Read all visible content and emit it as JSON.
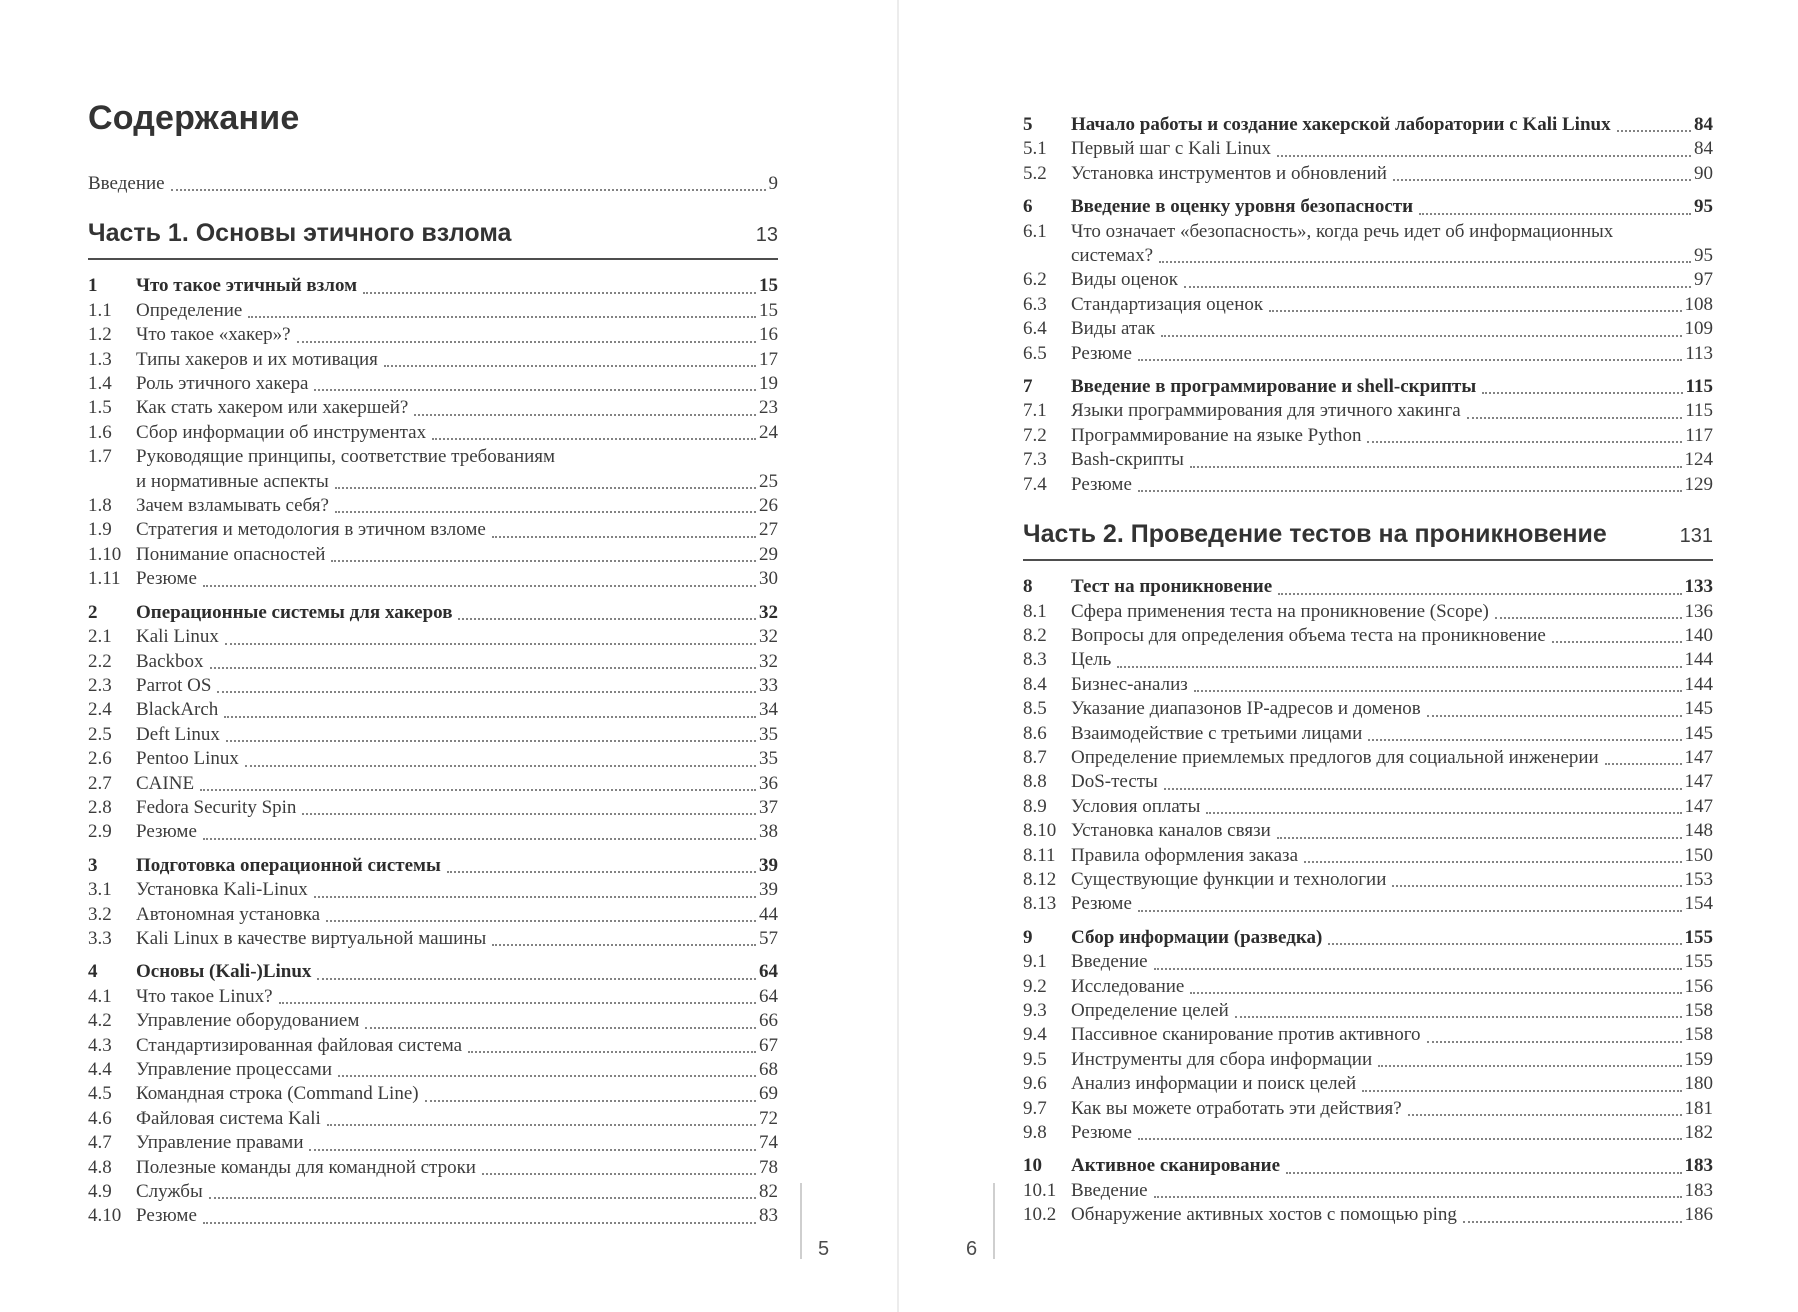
{
  "document_title": "Содержание",
  "colors": {
    "paper": "#ffffff",
    "heading_text": "#333333",
    "body_text": "#3c3c3c",
    "dot_leader": "#838383",
    "part_rule": "#4e4e4e",
    "page_divider": "#ececec",
    "folio_rule": "#cfcfcf"
  },
  "pages": [
    {
      "folio": "5",
      "title": "Содержание",
      "blocks": [
        {
          "kind": "group",
          "rows": [
            {
              "flush": true,
              "label": "Введение",
              "page": "9"
            }
          ]
        },
        {
          "kind": "part",
          "label": "Часть 1. Основы этичного взлома",
          "page": "13"
        },
        {
          "kind": "group",
          "rows": [
            {
              "num": "1",
              "label": "Что такое этичный взлом",
              "page": "15",
              "bold": true
            },
            {
              "num": "1.1",
              "label": "Определение",
              "page": "15"
            },
            {
              "num": "1.2",
              "label": "Что такое «хакер»?",
              "page": "16"
            },
            {
              "num": "1.3",
              "label": "Типы хакеров и их мотивация",
              "page": "17"
            },
            {
              "num": "1.4",
              "label": "Роль этичного хакера",
              "page": "19"
            },
            {
              "num": "1.5",
              "label": "Как стать хакером или хакершей?",
              "page": "23"
            },
            {
              "num": "1.6",
              "label": "Сбор информации об инструментах",
              "page": "24"
            },
            {
              "num": "1.7",
              "label": "Руководящие принципы, соответствие требованиям",
              "label2": "и нормативные аспекты",
              "page": "25"
            },
            {
              "num": "1.8",
              "label": "Зачем взламывать себя?",
              "page": "26"
            },
            {
              "num": "1.9",
              "label": "Стратегия и методология в этичном взломе",
              "page": "27"
            },
            {
              "num": "1.10",
              "label": "Понимание опасностей",
              "page": "29"
            },
            {
              "num": "1.11",
              "label": "Резюме",
              "page": "30"
            }
          ]
        },
        {
          "kind": "group",
          "rows": [
            {
              "num": "2",
              "label": "Операционные системы для хакеров",
              "page": "32",
              "bold": true
            },
            {
              "num": "2.1",
              "label": "Kali Linux",
              "page": "32"
            },
            {
              "num": "2.2",
              "label": "Backbox",
              "page": "32"
            },
            {
              "num": "2.3",
              "label": "Parrot OS",
              "page": "33"
            },
            {
              "num": "2.4",
              "label": "BlackArch",
              "page": "34"
            },
            {
              "num": "2.5",
              "label": "Deft Linux",
              "page": "35"
            },
            {
              "num": "2.6",
              "label": "Pentoo Linux",
              "page": "35"
            },
            {
              "num": "2.7",
              "label": "CAINE",
              "page": "36"
            },
            {
              "num": "2.8",
              "label": "Fedora Security Spin",
              "page": "37"
            },
            {
              "num": "2.9",
              "label": "Резюме",
              "page": "38"
            }
          ]
        },
        {
          "kind": "group",
          "rows": [
            {
              "num": "3",
              "label": "Подготовка операционной системы",
              "page": "39",
              "bold": true
            },
            {
              "num": "3.1",
              "label": "Установка Kali-Linux",
              "page": "39"
            },
            {
              "num": "3.2",
              "label": "Автономная установка",
              "page": "44"
            },
            {
              "num": "3.3",
              "label": "Kali Linux в качестве виртуальной машины",
              "page": "57"
            }
          ]
        },
        {
          "kind": "group",
          "rows": [
            {
              "num": "4",
              "label": "Основы (Kali-)Linux",
              "page": "64",
              "bold": true
            },
            {
              "num": "4.1",
              "label": "Что такое Linux?",
              "page": "64"
            },
            {
              "num": "4.2",
              "label": "Управление оборудованием",
              "page": "66"
            },
            {
              "num": "4.3",
              "label": "Стандартизированная файловая система",
              "page": "67"
            },
            {
              "num": "4.4",
              "label": "Управление процессами",
              "page": "68"
            },
            {
              "num": "4.5",
              "label": "Командная строка (Command Line)",
              "page": "69"
            },
            {
              "num": "4.6",
              "label": "Файловая система Kali",
              "page": "72"
            },
            {
              "num": "4.7",
              "label": "Управление правами",
              "page": "74"
            },
            {
              "num": "4.8",
              "label": "Полезные команды для командной строки",
              "page": "78"
            },
            {
              "num": "4.9",
              "label": "Службы",
              "page": "82"
            },
            {
              "num": "4.10",
              "label": "Резюме",
              "page": "83"
            }
          ]
        }
      ]
    },
    {
      "folio": "6",
      "blocks": [
        {
          "kind": "group",
          "rows": [
            {
              "num": "5",
              "label": "Начало работы и создание хакерской лаборатории с Kali Linux",
              "page": "84",
              "bold": true
            },
            {
              "num": "5.1",
              "label": "Первый шаг с Kali Linux",
              "page": "84"
            },
            {
              "num": "5.2",
              "label": "Установка инструментов и обновлений",
              "page": "90"
            }
          ]
        },
        {
          "kind": "group",
          "rows": [
            {
              "num": "6",
              "label": "Введение в оценку уровня безопасности",
              "page": "95",
              "bold": true
            },
            {
              "num": "6.1",
              "label": "Что означает «безопасность», когда речь идет об информационных",
              "label2": "системах?",
              "page": "95"
            },
            {
              "num": "6.2",
              "label": "Виды оценок",
              "page": "97"
            },
            {
              "num": "6.3",
              "label": "Стандартизация оценок",
              "page": "108"
            },
            {
              "num": "6.4",
              "label": "Виды атак",
              "page": "109"
            },
            {
              "num": "6.5",
              "label": "Резюме",
              "page": "113"
            }
          ]
        },
        {
          "kind": "group",
          "rows": [
            {
              "num": "7",
              "label": "Введение в программирование и shell-скрипты",
              "page": "115",
              "bold": true
            },
            {
              "num": "7.1",
              "label": "Языки программирования для этичного хакинга",
              "page": "115"
            },
            {
              "num": "7.2",
              "label": "Программирование на языке Python",
              "page": "117"
            },
            {
              "num": "7.3",
              "label": "Bash-скрипты",
              "page": "124"
            },
            {
              "num": "7.4",
              "label": "Резюме",
              "page": "129"
            }
          ]
        },
        {
          "kind": "part",
          "label": "Часть 2. Проведение тестов на проникновение",
          "page": "131"
        },
        {
          "kind": "group",
          "rows": [
            {
              "num": "8",
              "label": "Тест на проникновение",
              "page": "133",
              "bold": true
            },
            {
              "num": "8.1",
              "label": "Сфера применения теста на проникновение (Scope)",
              "page": "136"
            },
            {
              "num": "8.2",
              "label": "Вопросы для определения объема теста на проникновение",
              "page": "140"
            },
            {
              "num": "8.3",
              "label": "Цель",
              "page": "144"
            },
            {
              "num": "8.4",
              "label": "Бизнес-анализ",
              "page": "144"
            },
            {
              "num": "8.5",
              "label": "Указание диапазонов IP-адресов и доменов",
              "page": "145"
            },
            {
              "num": "8.6",
              "label": "Взаимодействие с третьими лицами",
              "page": "145"
            },
            {
              "num": "8.7",
              "label": "Определение приемлемых предлогов для социальной инженерии",
              "page": "147"
            },
            {
              "num": "8.8",
              "label": "DoS-тесты",
              "page": "147"
            },
            {
              "num": "8.9",
              "label": "Условия оплаты",
              "page": "147"
            },
            {
              "num": "8.10",
              "label": "Установка каналов связи",
              "page": "148"
            },
            {
              "num": "8.11",
              "label": "Правила оформления заказа",
              "page": "150"
            },
            {
              "num": "8.12",
              "label": "Существующие функции и технологии",
              "page": "153"
            },
            {
              "num": "8.13",
              "label": "Резюме",
              "page": "154"
            }
          ]
        },
        {
          "kind": "group",
          "rows": [
            {
              "num": "9",
              "label": "Сбор информации (разведка)",
              "page": "155",
              "bold": true
            },
            {
              "num": "9.1",
              "label": "Введение",
              "page": "155"
            },
            {
              "num": "9.2",
              "label": "Исследование",
              "page": "156"
            },
            {
              "num": "9.3",
              "label": "Определение целей",
              "page": "158"
            },
            {
              "num": "9.4",
              "label": "Пассивное сканирование против активного",
              "page": "158"
            },
            {
              "num": "9.5",
              "label": "Инструменты для сбора информации",
              "page": "159"
            },
            {
              "num": "9.6",
              "label": "Анализ информации и поиск целей",
              "page": "180"
            },
            {
              "num": "9.7",
              "label": "Как вы можете отработать эти действия?",
              "page": "181"
            },
            {
              "num": "9.8",
              "label": "Резюме",
              "page": "182"
            }
          ]
        },
        {
          "kind": "group",
          "rows": [
            {
              "num": "10",
              "label": "Активное сканирование",
              "page": "183",
              "bold": true
            },
            {
              "num": "10.1",
              "label": "Введение",
              "page": "183"
            },
            {
              "num": "10.2",
              "label": "Обнаружение активных хостов с помощью ping",
              "page": "186"
            }
          ]
        }
      ]
    }
  ]
}
